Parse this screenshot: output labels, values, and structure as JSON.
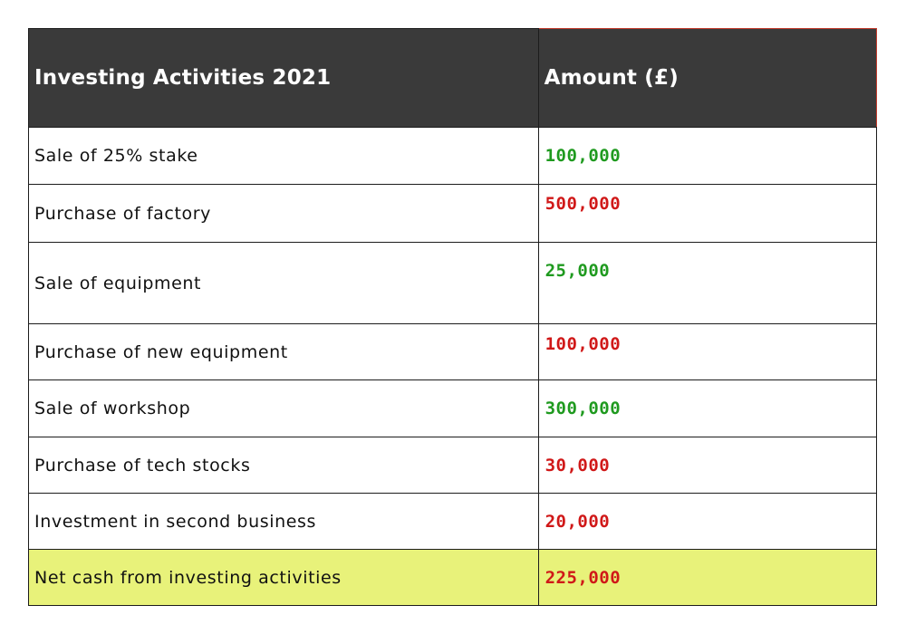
{
  "header": {
    "activity": "Investing Activities 2021",
    "amount": "Amount (£)"
  },
  "rows": [
    {
      "label": "Sale of 25% stake",
      "amount": "100,000",
      "sign": "positive"
    },
    {
      "label": "Purchase of factory",
      "amount": "500,000",
      "sign": "negative"
    },
    {
      "label": "Sale of equipment",
      "amount": "25,000",
      "sign": "positive"
    },
    {
      "label": "Purchase of new equipment",
      "amount": "100,000",
      "sign": "negative"
    },
    {
      "label": "Sale of workshop",
      "amount": "300,000",
      "sign": "positive"
    },
    {
      "label": "Purchase of tech stocks",
      "amount": "30,000",
      "sign": "negative"
    },
    {
      "label": "Investment in second business",
      "amount": "20,000",
      "sign": "negative"
    }
  ],
  "total": {
    "label": "Net cash from investing activities",
    "amount": "225,000",
    "sign": "negative"
  },
  "colors": {
    "header_bg": "#3a3a3a",
    "positive": "#1f9a1f",
    "negative": "#d01818",
    "total_bg": "#e8f27a"
  }
}
